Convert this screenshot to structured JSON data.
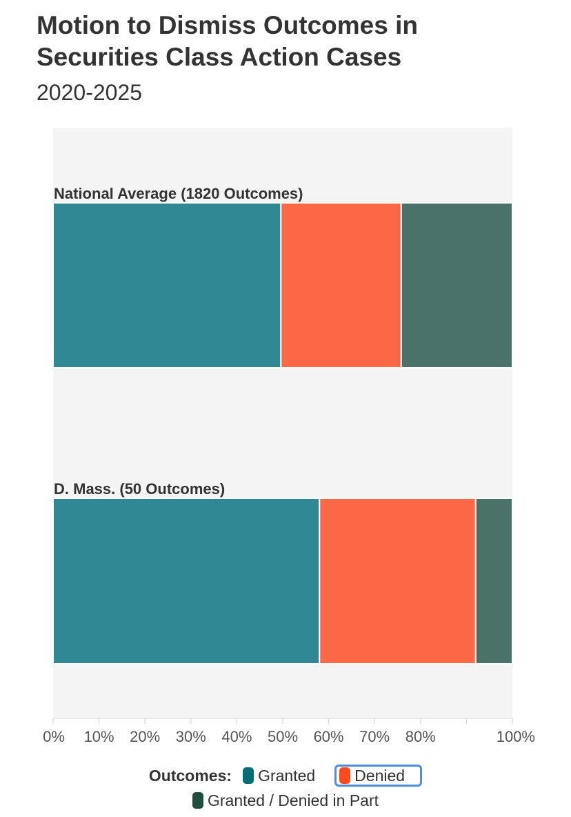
{
  "title": "Motion to Dismiss Outcomes in Securities Class Action Cases",
  "subtitle": "2020-2025",
  "legend": {
    "title": "Outcomes:",
    "items": [
      {
        "label": "Granted",
        "color": "#006d77",
        "highlighted": false
      },
      {
        "label": "Denied",
        "color": "#ff4a1c",
        "highlighted": true
      },
      {
        "label": "Granted / Denied in Part",
        "color": "#1f4d40",
        "highlighted": false
      }
    ]
  },
  "chart_data": {
    "type": "bar",
    "orientation": "horizontal-stacked-100",
    "categories": [
      "National Average (1820 Outcomes)",
      "D. Mass. (50 Outcomes)"
    ],
    "series": [
      {
        "name": "Granted",
        "values": [
          49.6,
          58.0
        ],
        "color": "#2f8893"
      },
      {
        "name": "Denied",
        "values": [
          26.2,
          34.0
        ],
        "color": "#fc6846"
      },
      {
        "name": "Granted / Denied in Part",
        "values": [
          24.2,
          8.0
        ],
        "color": "#4a7268"
      }
    ],
    "xlim": [
      0,
      100
    ],
    "x_ticks": [
      "0%",
      "10%",
      "20%",
      "30%",
      "40%",
      "50%",
      "60%",
      "70%",
      "80%",
      "",
      "100%"
    ],
    "grid": false,
    "legend_position": "bottom"
  }
}
